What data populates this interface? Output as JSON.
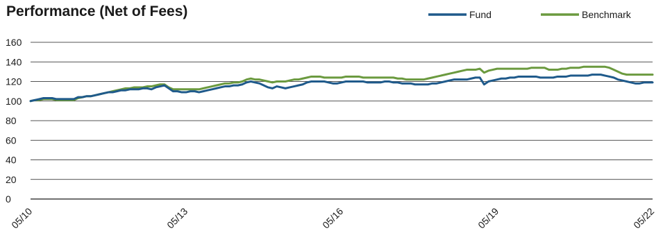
{
  "chart_data": {
    "type": "line",
    "title": "Performance (Net of Fees)",
    "xlabel": "",
    "ylabel": "",
    "ylim": [
      0,
      160
    ],
    "yticks": [
      0,
      20,
      40,
      60,
      80,
      100,
      120,
      140,
      160
    ],
    "x_tick_labels": [
      "05/10",
      "05/13",
      "05/16",
      "05/19",
      "05/22"
    ],
    "x_tick_positions": [
      0,
      36,
      72,
      108,
      144
    ],
    "grid": "horizontal",
    "legend_position": "top-right",
    "series": [
      {
        "name": "Fund",
        "color": "#1f5a8b",
        "values": [
          100,
          101,
          102,
          103,
          103,
          103,
          102,
          102,
          102,
          102,
          102,
          104,
          104,
          105,
          105,
          106,
          107,
          108,
          109,
          109,
          110,
          111,
          111,
          112,
          112,
          112,
          113,
          113,
          112,
          114,
          115,
          116,
          113,
          110,
          110,
          109,
          109,
          110,
          110,
          109,
          110,
          111,
          112,
          113,
          114,
          115,
          115,
          116,
          116,
          117,
          119,
          120,
          119,
          118,
          116,
          114,
          113,
          115,
          114,
          113,
          114,
          115,
          116,
          117,
          119,
          120,
          120,
          120,
          120,
          119,
          118,
          118,
          119,
          120,
          120,
          120,
          120,
          120,
          119,
          119,
          119,
          119,
          120,
          120,
          119,
          119,
          118,
          118,
          118,
          117,
          117,
          117,
          117,
          118,
          118,
          119,
          120,
          121,
          122,
          122,
          122,
          122,
          123,
          124,
          124,
          117,
          120,
          121,
          122,
          123,
          123,
          124,
          124,
          125,
          125,
          125,
          125,
          125,
          124,
          124,
          124,
          124,
          125,
          125,
          125,
          126,
          126,
          126,
          126,
          126,
          127,
          127,
          127,
          126,
          125,
          124,
          122,
          121,
          120,
          119,
          118,
          118,
          119,
          119,
          119
        ]
      },
      {
        "name": "Benchmark",
        "color": "#6b9a3f",
        "values": [
          100,
          101,
          101,
          102,
          102,
          102,
          101,
          101,
          101,
          101,
          101,
          103,
          104,
          105,
          105,
          106,
          107,
          108,
          109,
          110,
          111,
          112,
          113,
          113,
          114,
          114,
          114,
          115,
          115,
          116,
          117,
          117,
          114,
          112,
          112,
          112,
          112,
          112,
          112,
          112,
          113,
          114,
          115,
          116,
          117,
          118,
          118,
          119,
          119,
          120,
          122,
          123,
          122,
          122,
          121,
          120,
          119,
          120,
          120,
          120,
          121,
          122,
          122,
          123,
          124,
          125,
          125,
          125,
          124,
          124,
          124,
          124,
          124,
          125,
          125,
          125,
          125,
          124,
          124,
          124,
          124,
          124,
          124,
          124,
          124,
          123,
          123,
          122,
          122,
          122,
          122,
          122,
          123,
          124,
          125,
          126,
          127,
          128,
          129,
          130,
          131,
          132,
          132,
          132,
          133,
          129,
          131,
          132,
          133,
          133,
          133,
          133,
          133,
          133,
          133,
          133,
          134,
          134,
          134,
          134,
          132,
          132,
          132,
          133,
          133,
          134,
          134,
          134,
          135,
          135,
          135,
          135,
          135,
          135,
          134,
          132,
          130,
          128,
          127,
          127,
          127,
          127,
          127,
          127,
          127
        ]
      }
    ]
  }
}
